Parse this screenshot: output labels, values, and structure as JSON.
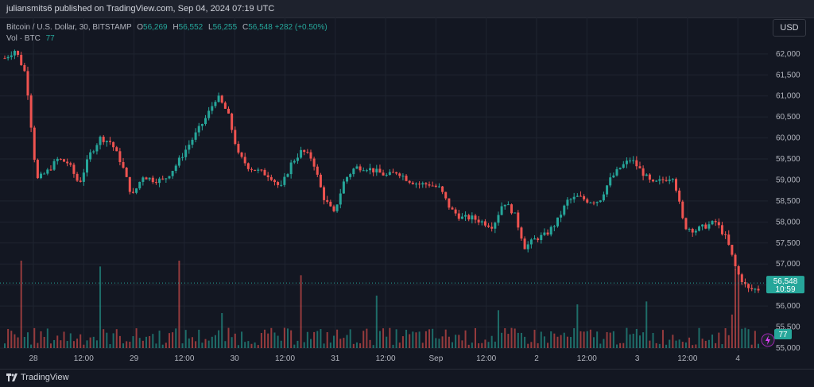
{
  "header": {
    "publisher_line": "juliansmits6 published on TradingView.com, Sep 04, 2024 07:19 UTC"
  },
  "legend": {
    "symbol": "Bitcoin / U.S. Dollar, 30, BITSTAMP",
    "o_label": "O",
    "o_value": "56,269",
    "h_label": "H",
    "h_value": "56,552",
    "l_label": "L",
    "l_value": "56,255",
    "c_label": "C",
    "c_value": "56,548",
    "change": "+282 (+0.50%)",
    "vol_label": "Vol · BTC",
    "vol_value": "77"
  },
  "currency_button": "USD",
  "price_tag": {
    "price": "56,548",
    "countdown": "10:59"
  },
  "volume_tag": "77",
  "brand": "TradingView",
  "colors": {
    "up": "#26a69a",
    "down": "#ef5350",
    "background": "#131722",
    "grid": "#1f2430"
  },
  "chart_data": {
    "type": "candlestick",
    "xlabel": "",
    "ylabel": "",
    "ylim": [
      55000,
      62300
    ],
    "y_ticks": [
      "55,000",
      "55,500",
      "56,000",
      "56,500",
      "57,000",
      "57,500",
      "58,000",
      "58,500",
      "59,000",
      "59,500",
      "60,000",
      "60,500",
      "61,000",
      "61,500",
      "62,000"
    ],
    "y_tick_values": [
      55000,
      55500,
      56000,
      56500,
      57000,
      57500,
      58000,
      58500,
      59000,
      59500,
      60000,
      60500,
      61000,
      61500,
      62000
    ],
    "x_ticks": [
      "28",
      "12:00",
      "29",
      "12:00",
      "30",
      "12:00",
      "31",
      "12:00",
      "Sep",
      "12:00",
      "2",
      "12:00",
      "3",
      "12:00",
      "4"
    ],
    "current_price": 56548,
    "path_points": [
      [
        0,
        61900
      ],
      [
        2,
        62100
      ],
      [
        4,
        61500
      ],
      [
        6,
        59000
      ],
      [
        8,
        59200
      ],
      [
        10,
        59500
      ],
      [
        12,
        59400
      ],
      [
        14,
        58900
      ],
      [
        16,
        59600
      ],
      [
        18,
        60000
      ],
      [
        20,
        59900
      ],
      [
        22,
        59400
      ],
      [
        24,
        58600
      ],
      [
        26,
        59100
      ],
      [
        28,
        59000
      ],
      [
        30,
        59000
      ],
      [
        32,
        59300
      ],
      [
        34,
        59700
      ],
      [
        36,
        60100
      ],
      [
        38,
        60500
      ],
      [
        40,
        61000
      ],
      [
        42,
        60600
      ],
      [
        44,
        59600
      ],
      [
        46,
        59300
      ],
      [
        48,
        59200
      ],
      [
        50,
        59100
      ],
      [
        52,
        58800
      ],
      [
        54,
        59400
      ],
      [
        56,
        59700
      ],
      [
        58,
        59500
      ],
      [
        60,
        58600
      ],
      [
        62,
        58200
      ],
      [
        64,
        59000
      ],
      [
        66,
        59300
      ],
      [
        68,
        59300
      ],
      [
        70,
        59200
      ],
      [
        72,
        59100
      ],
      [
        74,
        59200
      ],
      [
        76,
        59000
      ],
      [
        78,
        58900
      ],
      [
        80,
        58900
      ],
      [
        82,
        58800
      ],
      [
        84,
        58300
      ],
      [
        86,
        58100
      ],
      [
        88,
        58100
      ],
      [
        90,
        58000
      ],
      [
        92,
        57900
      ],
      [
        94,
        58500
      ],
      [
        96,
        58200
      ],
      [
        98,
        57400
      ],
      [
        100,
        57600
      ],
      [
        102,
        57700
      ],
      [
        104,
        58000
      ],
      [
        106,
        58500
      ],
      [
        108,
        58600
      ],
      [
        110,
        58500
      ],
      [
        112,
        58500
      ],
      [
        114,
        59000
      ],
      [
        116,
        59300
      ],
      [
        118,
        59500
      ],
      [
        120,
        59200
      ],
      [
        122,
        58900
      ],
      [
        124,
        59000
      ],
      [
        126,
        59100
      ],
      [
        128,
        57900
      ],
      [
        130,
        57800
      ],
      [
        132,
        57900
      ],
      [
        134,
        58000
      ],
      [
        136,
        57600
      ],
      [
        138,
        56800
      ],
      [
        140,
        56400
      ],
      [
        142,
        56400
      ]
    ],
    "volume_max": 300,
    "volume_spikes": [
      [
        3,
        300
      ],
      [
        18,
        280
      ],
      [
        33,
        300
      ],
      [
        41,
        120
      ],
      [
        56,
        250
      ],
      [
        70,
        180
      ],
      [
        93,
        130
      ],
      [
        108,
        150
      ],
      [
        121,
        160
      ],
      [
        137,
        115
      ],
      [
        138,
        270
      ]
    ]
  }
}
